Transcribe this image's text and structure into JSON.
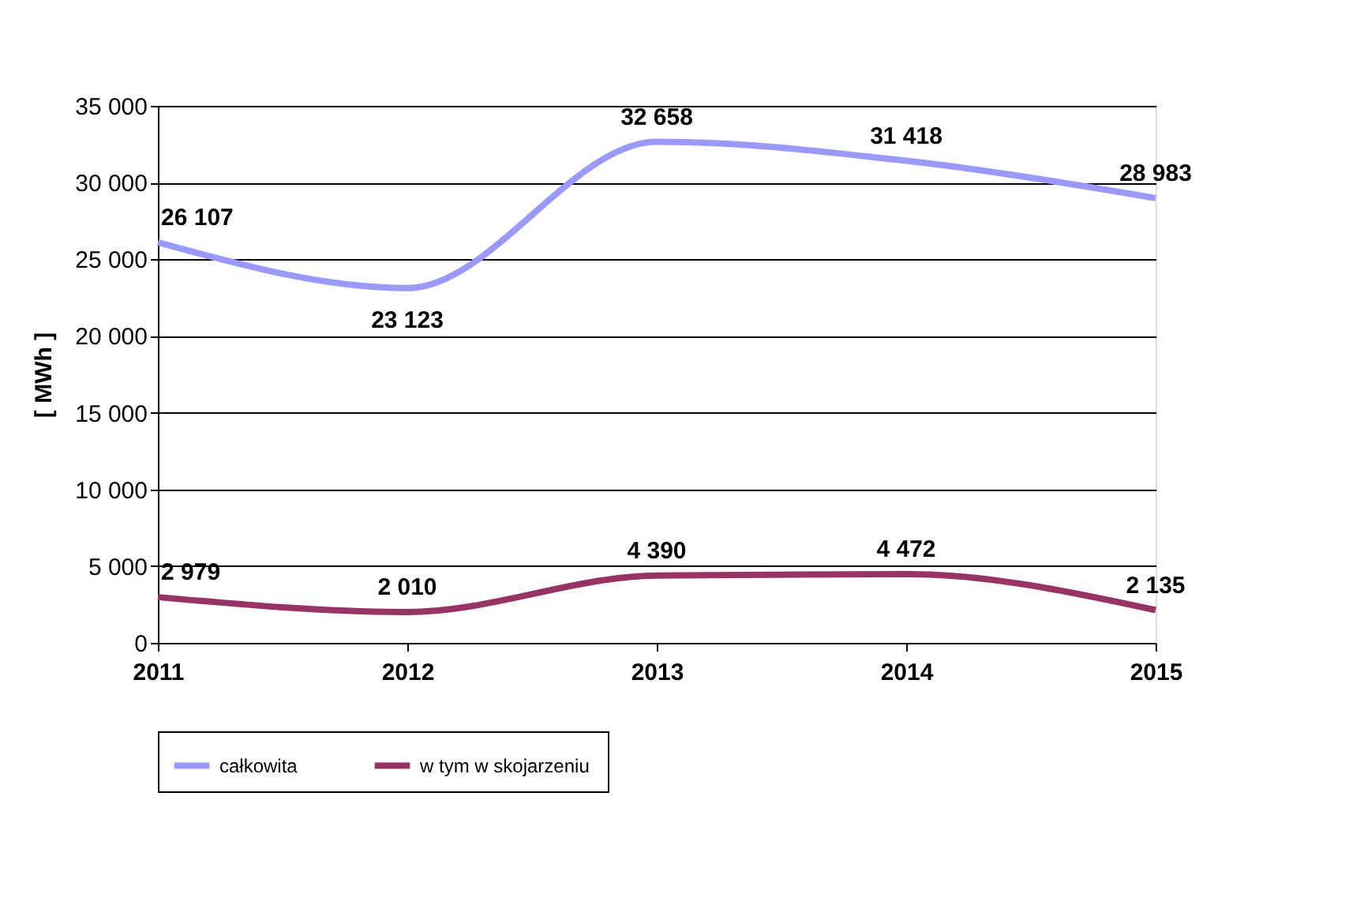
{
  "chart_data": {
    "type": "line",
    "ylabel": "[ MWh ]",
    "x": [
      2011,
      2012,
      2013,
      2014,
      2015
    ],
    "xlim": [
      2011,
      2015
    ],
    "xticks": [
      2011,
      2012,
      2013,
      2014,
      2015
    ],
    "ylim": [
      0,
      35000
    ],
    "yticks": [
      0,
      {
        "value": 5000,
        "label": "5 000"
      },
      {
        "value": 10000,
        "label": "10 000"
      },
      {
        "value": 15000,
        "label": "15 000"
      },
      {
        "value": 20000,
        "label": "20 000"
      },
      {
        "value": 25000,
        "label": "25 000"
      },
      {
        "value": 30000,
        "label": "30 000"
      },
      {
        "value": 35000,
        "label": "35 000"
      }
    ],
    "series": [
      {
        "name": "całkowita",
        "color": "#9999ff",
        "values": [
          26107,
          23123,
          32658,
          31418,
          28983
        ],
        "value_labels": [
          "26 107",
          "23 123",
          "32 658",
          "31 418",
          "28 983"
        ]
      },
      {
        "name": "w tym  w skojarzeniu",
        "color": "#993366",
        "values": [
          2979,
          2010,
          4390,
          4472,
          2135
        ],
        "value_labels": [
          "2 979",
          "2 010",
          "4 390",
          "4 472",
          "2 135"
        ]
      }
    ],
    "grid": "y",
    "legend": "bottom",
    "marker": "none",
    "line_style": "solid"
  }
}
